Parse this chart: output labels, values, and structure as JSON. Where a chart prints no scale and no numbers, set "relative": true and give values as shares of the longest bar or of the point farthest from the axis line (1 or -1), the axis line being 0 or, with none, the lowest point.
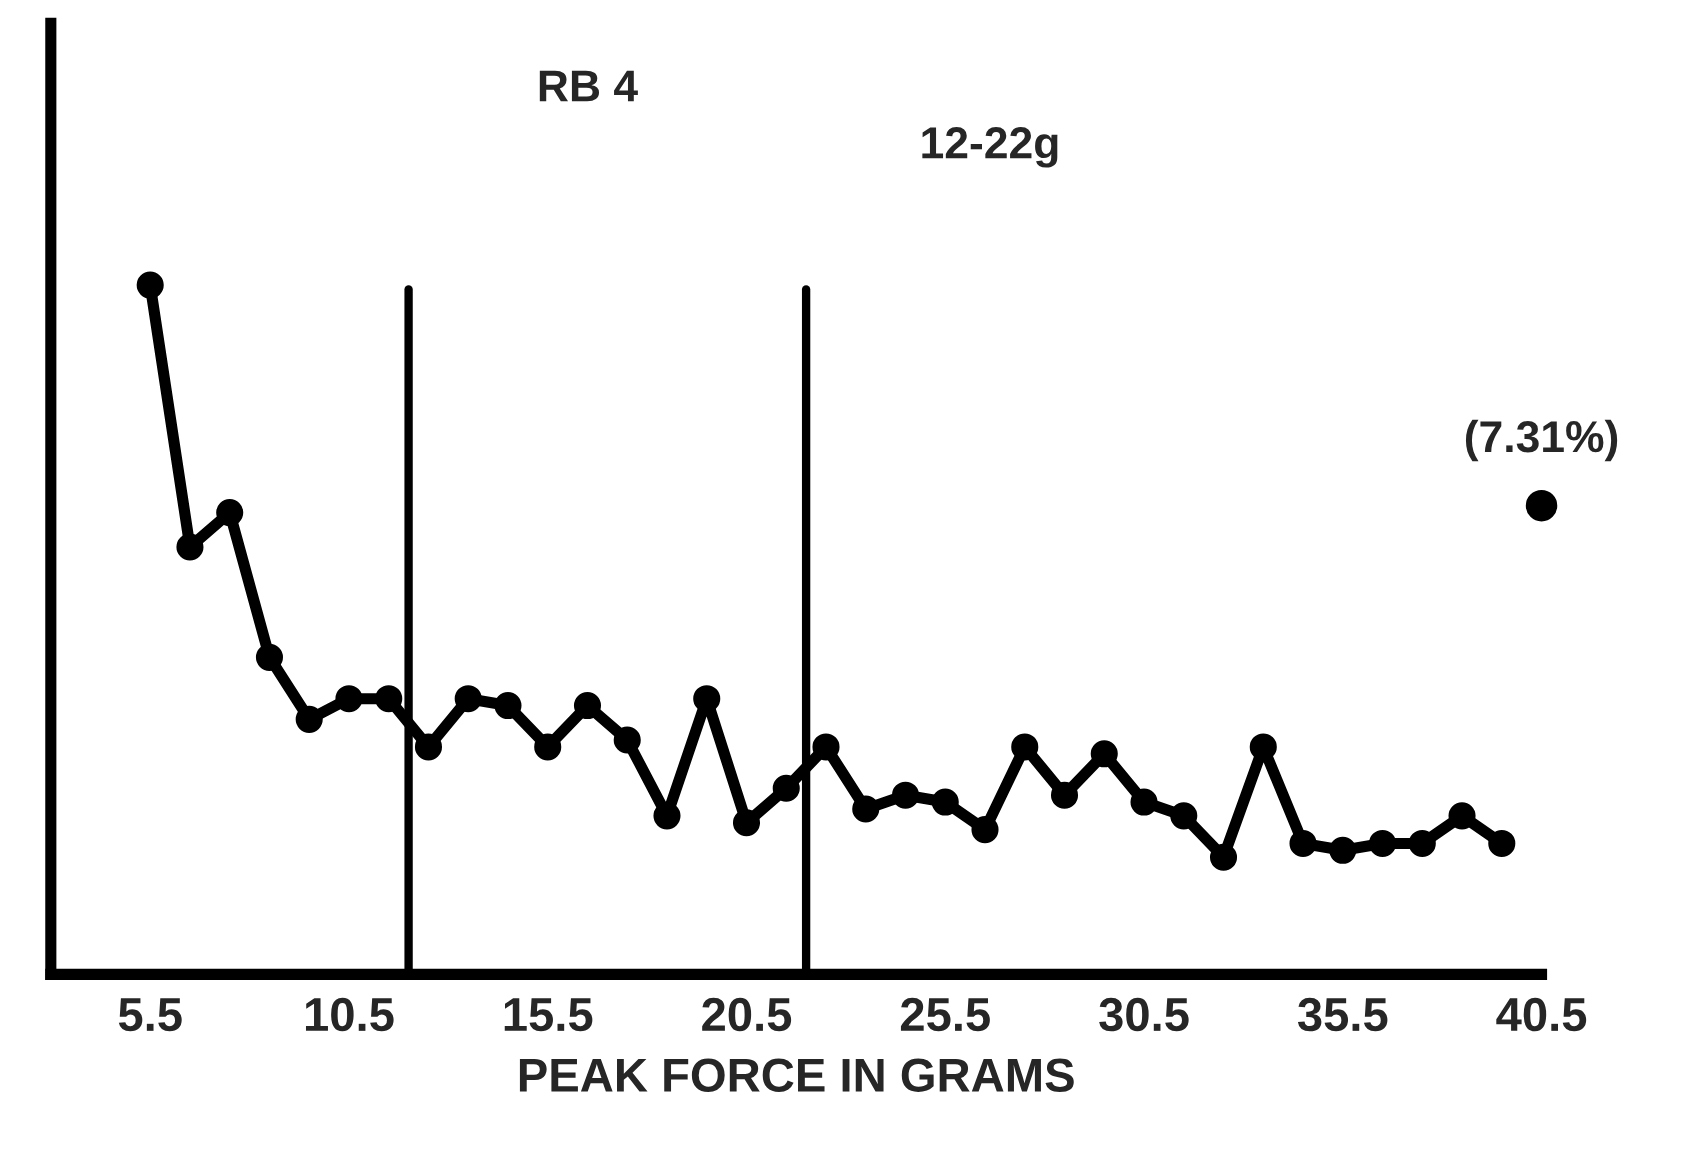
{
  "chart_data": {
    "type": "line",
    "relative": true,
    "xlabel": "PEAK FORCE IN GRAMS",
    "xlim": [
      3,
      40.5
    ],
    "xticks": [
      5.5,
      10.5,
      15.5,
      20.5,
      25.5,
      30.5,
      35.5,
      40.5
    ],
    "marker": "circle",
    "line_style": "solid",
    "grid": false,
    "legend": false,
    "series": [
      {
        "color": "#000000",
        "x": [
          5.5,
          6.5,
          7.5,
          8.5,
          9.5,
          10.5,
          11.5,
          12.5,
          13.5,
          14.5,
          15.5,
          16.5,
          17.5,
          18.5,
          19.5,
          20.5,
          21.5,
          22.5,
          23.5,
          24.5,
          25.5,
          26.5,
          27.5,
          28.5,
          29.5,
          30.5,
          31.5,
          32.5,
          33.5,
          34.5,
          35.5,
          36.5,
          37.5,
          38.5,
          39.5
        ],
        "values": [
          1.0,
          0.62,
          0.67,
          0.46,
          0.37,
          0.4,
          0.4,
          0.33,
          0.4,
          0.39,
          0.33,
          0.39,
          0.34,
          0.23,
          0.4,
          0.22,
          0.27,
          0.33,
          0.24,
          0.26,
          0.25,
          0.21,
          0.33,
          0.26,
          0.32,
          0.25,
          0.23,
          0.17,
          0.33,
          0.19,
          0.18,
          0.19,
          0.19,
          0.23,
          0.19
        ]
      },
      {
        "type": "scatter",
        "color": "#000000",
        "x": [
          40.5
        ],
        "values": [
          0.68
        ]
      }
    ],
    "ref_lines": [
      {
        "axis": "x",
        "value": 12,
        "color": "#000000"
      },
      {
        "axis": "x",
        "value": 22,
        "color": "#000000"
      }
    ],
    "annotations": [
      "RB 4",
      "12-22g",
      {
        "text": "(7.31%)",
        "x": 40.5,
        "y": 0.68
      }
    ]
  }
}
